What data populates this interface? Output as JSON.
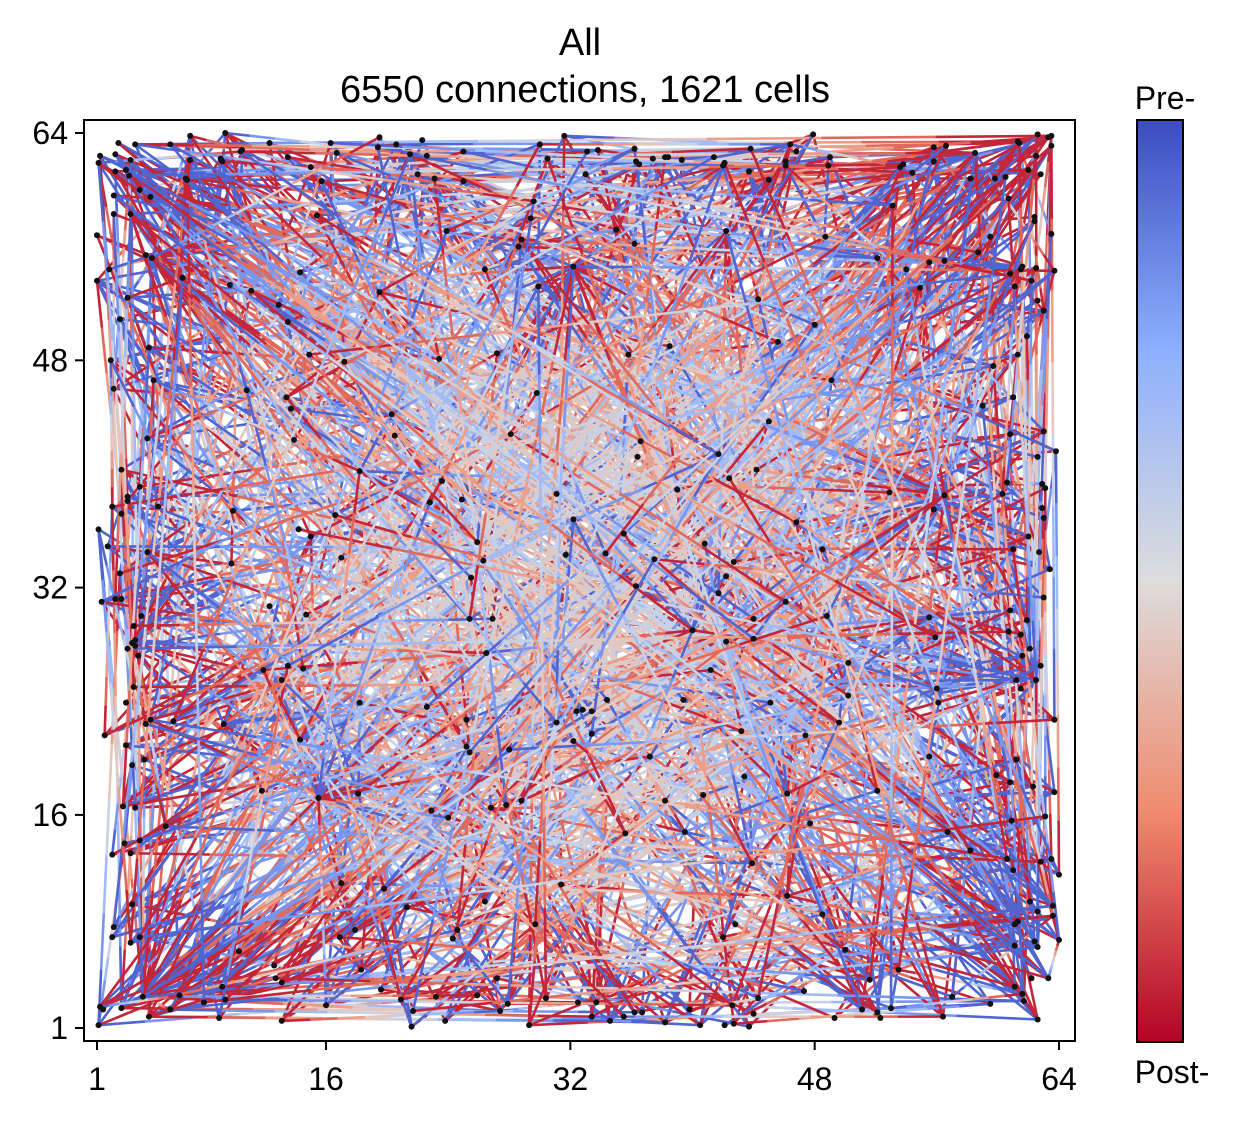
{
  "chart_data": {
    "type": "network",
    "title": "All",
    "subtitle": "6550 connections, 1621 cells",
    "xlabel": "",
    "ylabel": "",
    "xlim": [
      0,
      65
    ],
    "ylim": [
      0,
      65
    ],
    "xticks": [
      1,
      16,
      32,
      48,
      64
    ],
    "yticks": [
      1,
      16,
      32,
      48,
      64
    ],
    "colorbar": {
      "top_label": "Pre-",
      "bottom_label": "Post-",
      "colormap": "coolwarm",
      "colors": [
        "#b40426",
        "#f08b6e",
        "#dddcdc",
        "#8db0fe",
        "#3b4cc0"
      ]
    },
    "connections_count": 6550,
    "cells_count": 1621,
    "hubs": [
      [
        58.5,
        62.6
      ],
      [
        21.5,
        62.5
      ],
      [
        32.2,
        54.6
      ],
      [
        4.6,
        55.2
      ],
      [
        4.0,
        3.2
      ],
      [
        56.5,
        38.5
      ],
      [
        62.5,
        25.5
      ],
      [
        15.5,
        17.2
      ],
      [
        40.0,
        29.0
      ]
    ],
    "grid": false,
    "legend": "none"
  }
}
